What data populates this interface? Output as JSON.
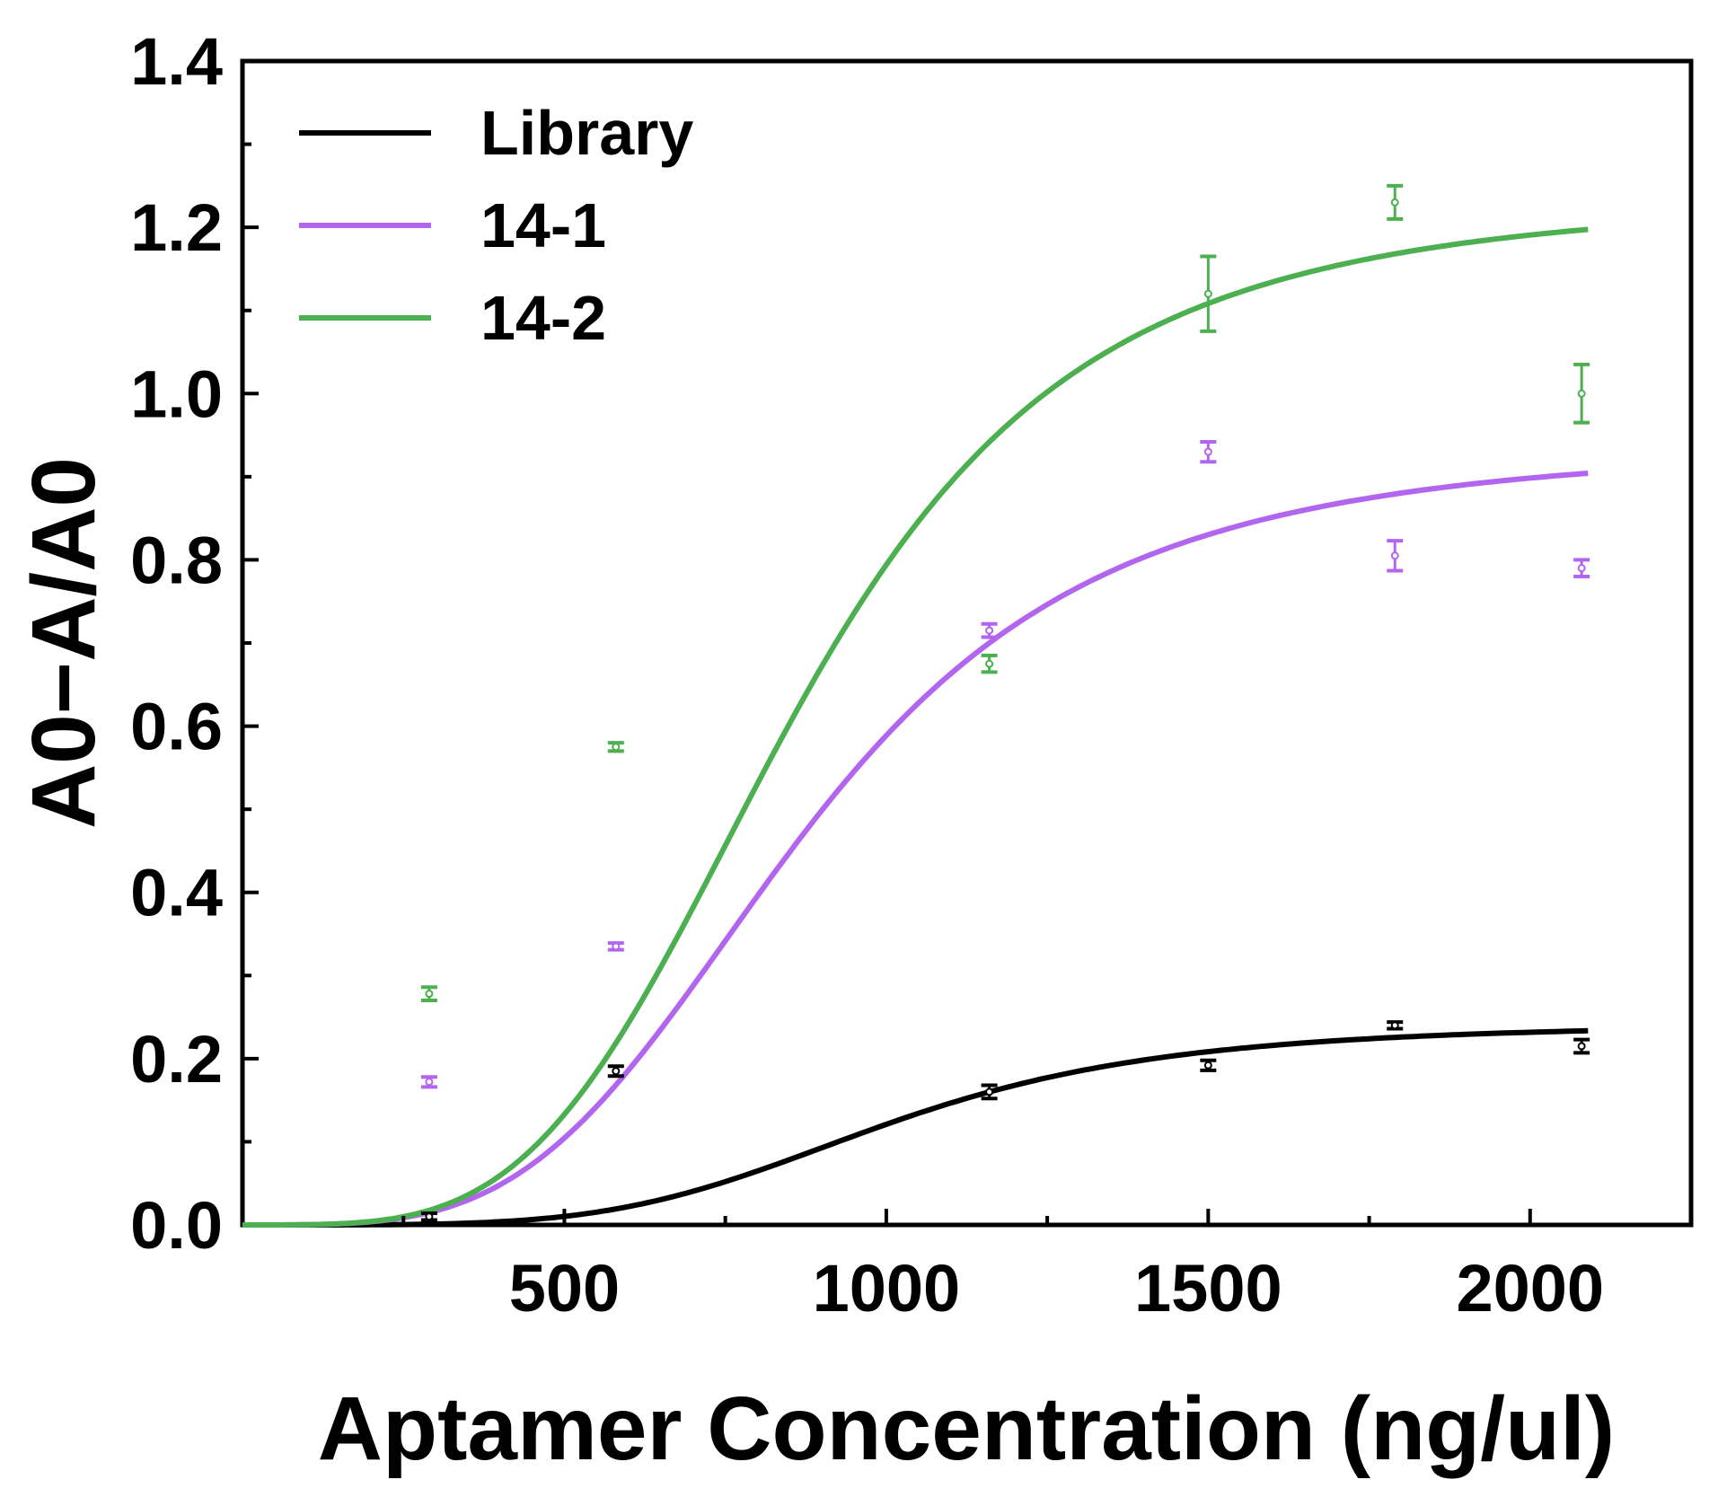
{
  "chart_data": {
    "type": "scatter",
    "xlabel": "Aptamer Concentration (ng/ul)",
    "ylabel": "A0−A/A0",
    "xlim": [
      0,
      2250
    ],
    "ylim": [
      0.0,
      1.4
    ],
    "x_ticks": [
      500,
      1000,
      1500,
      2000
    ],
    "x_tick_labels": [
      "500",
      "1000",
      "1500",
      "2000"
    ],
    "y_ticks": [
      0.0,
      0.2,
      0.4,
      0.6,
      0.8,
      1.0,
      1.2,
      1.4
    ],
    "y_tick_labels": [
      "0.0",
      "0.2",
      "0.4",
      "0.6",
      "0.8",
      "1.0",
      "1.2",
      "1.4"
    ],
    "grid": false,
    "legend_position": "top-left",
    "colors": {
      "axis": "#000000",
      "Library": "#000000",
      "14-1": "#b266f0",
      "14-2": "#4caf50"
    },
    "series": [
      {
        "name": "Library",
        "color": "#000000",
        "x": [
          290,
          580,
          1160,
          1500,
          1790,
          2080
        ],
        "y": [
          0.01,
          0.185,
          0.16,
          0.192,
          0.24,
          0.215
        ],
        "err": [
          0.004,
          0.006,
          0.008,
          0.006,
          0.004,
          0.008
        ],
        "fit": {
          "A1": 0.0,
          "A2": 0.242,
          "x0": 1000,
          "p": 4.5
        }
      },
      {
        "name": "14-1",
        "color": "#b266f0",
        "x": [
          290,
          580,
          1160,
          1500,
          1790,
          2080
        ],
        "y": [
          0.172,
          0.335,
          0.715,
          0.93,
          0.805,
          0.79
        ],
        "err": [
          0.006,
          0.004,
          0.008,
          0.012,
          0.018,
          0.01
        ],
        "fit": {
          "A1": 0.0,
          "A2": 0.938,
          "x0": 870,
          "p": 3.75
        }
      },
      {
        "name": "14-2",
        "color": "#4caf50",
        "x": [
          290,
          580,
          1160,
          1500,
          1790,
          2080
        ],
        "y": [
          0.278,
          0.575,
          0.675,
          1.12,
          1.23,
          1.0
        ],
        "err": [
          0.008,
          0.005,
          0.01,
          0.045,
          0.02,
          0.035
        ],
        "fit": {
          "A1": 0.0,
          "A2": 1.235,
          "x0": 860,
          "p": 3.9
        }
      }
    ]
  }
}
